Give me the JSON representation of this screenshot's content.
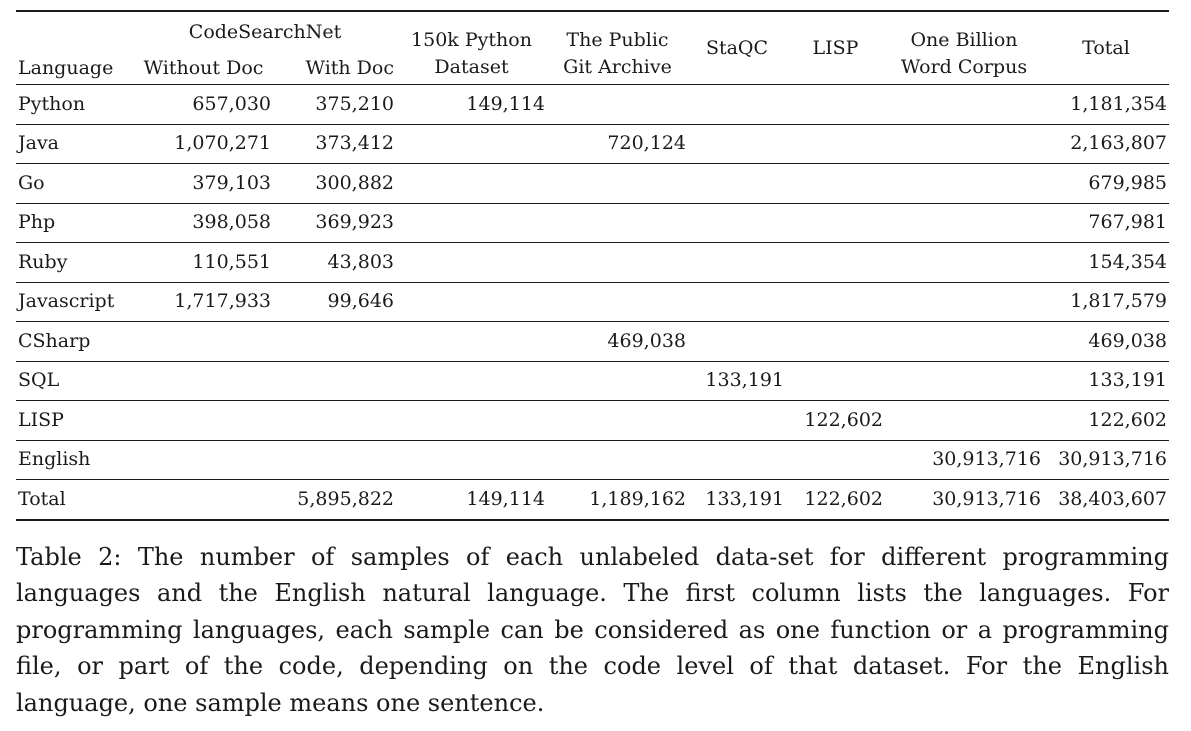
{
  "table": {
    "header_group": "CodeSearchNet",
    "headers": {
      "language": "Language",
      "without_doc": "Without Doc",
      "with_doc": "With Doc",
      "python150k": [
        "150k Python",
        "Dataset"
      ],
      "public_git": [
        "The Public",
        "Git Archive"
      ],
      "staqc": "StaQC",
      "lisp": "LISP",
      "one_billion": [
        "One Billion",
        "Word Corpus"
      ],
      "total": "Total"
    },
    "rows": [
      {
        "language": "Python",
        "without_doc": "657,030",
        "with_doc": "375,210",
        "python150k": "149,114",
        "public_git": "",
        "staqc": "",
        "lisp": "",
        "one_billion": "",
        "total": "1,181,354"
      },
      {
        "language": "Java",
        "without_doc": "1,070,271",
        "with_doc": "373,412",
        "python150k": "",
        "public_git": "720,124",
        "staqc": "",
        "lisp": "",
        "one_billion": "",
        "total": "2,163,807"
      },
      {
        "language": "Go",
        "without_doc": "379,103",
        "with_doc": "300,882",
        "python150k": "",
        "public_git": "",
        "staqc": "",
        "lisp": "",
        "one_billion": "",
        "total": "679,985"
      },
      {
        "language": "Php",
        "without_doc": "398,058",
        "with_doc": "369,923",
        "python150k": "",
        "public_git": "",
        "staqc": "",
        "lisp": "",
        "one_billion": "",
        "total": "767,981"
      },
      {
        "language": "Ruby",
        "without_doc": "110,551",
        "with_doc": "43,803",
        "python150k": "",
        "public_git": "",
        "staqc": "",
        "lisp": "",
        "one_billion": "",
        "total": "154,354"
      },
      {
        "language": "Javascript",
        "without_doc": "1,717,933",
        "with_doc": "99,646",
        "python150k": "",
        "public_git": "",
        "staqc": "",
        "lisp": "",
        "one_billion": "",
        "total": "1,817,579"
      },
      {
        "language": "CSharp",
        "without_doc": "",
        "with_doc": "",
        "python150k": "",
        "public_git": "469,038",
        "staqc": "",
        "lisp": "",
        "one_billion": "",
        "total": "469,038"
      },
      {
        "language": "SQL",
        "without_doc": "",
        "with_doc": "",
        "python150k": "",
        "public_git": "",
        "staqc": "133,191",
        "lisp": "",
        "one_billion": "",
        "total": "133,191"
      },
      {
        "language": "LISP",
        "without_doc": "",
        "with_doc": "",
        "python150k": "",
        "public_git": "",
        "staqc": "",
        "lisp": "122,602",
        "one_billion": "",
        "total": "122,602"
      },
      {
        "language": "English",
        "without_doc": "",
        "with_doc": "",
        "python150k": "",
        "public_git": "",
        "staqc": "",
        "lisp": "",
        "one_billion": "30,913,716",
        "total": "30,913,716"
      }
    ],
    "total_row": {
      "language": "Total",
      "without_doc": "",
      "with_doc": "5,895,822",
      "python150k": "149,114",
      "public_git": "1,189,162",
      "staqc": "133,191",
      "lisp": "122,602",
      "one_billion": "30,913,716",
      "total": "38,403,607"
    }
  },
  "caption": "Table 2: The number of samples of each unlabeled data-set for different programming languages and the English natural language. The first column lists the languages. For programming languages, each sample can be considered as one function or a programming file, or part of the code, depending on the code level of that dataset. For the English language, one sample means one sentence."
}
